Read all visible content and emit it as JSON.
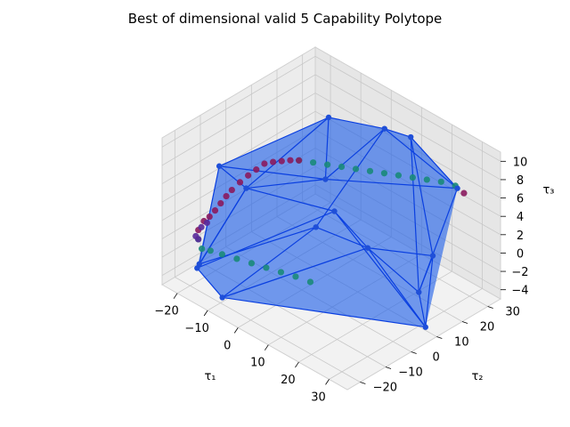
{
  "chart_data": {
    "type": "scatter",
    "projection": "3d",
    "title": "Best of dimensional valid 5 Capability Polytope",
    "xlabel": "τ₁",
    "ylabel": "τ₂",
    "zlabel": "τ₃",
    "x_ticks": [
      "−20",
      "−10",
      "0",
      "10",
      "20",
      "30"
    ],
    "y_ticks": [
      "−20",
      "−10",
      "0",
      "10",
      "20",
      "30"
    ],
    "z_ticks": [
      "−4",
      "−2",
      "0",
      "2",
      "4",
      "6",
      "8",
      "10"
    ],
    "xlim": [
      -25,
      36
    ],
    "ylim": [
      -25,
      35
    ],
    "zlim": [
      -5,
      11
    ],
    "grid": true,
    "polytope": {
      "face_color": "#1f5fe8",
      "edge_color": "#0a3fe0",
      "vertex_color": "#1f4fd8",
      "vertices": [
        [
          -22,
          -14,
          -4
        ],
        [
          -16,
          -22,
          -2
        ],
        [
          -6,
          -24,
          -3
        ],
        [
          -20,
          2,
          2
        ],
        [
          -23,
          -5,
          5
        ],
        [
          34,
          8,
          -4
        ],
        [
          28,
          18,
          1
        ],
        [
          36,
          3,
          1
        ],
        [
          -8,
          20,
          9
        ],
        [
          2,
          30,
          8
        ],
        [
          14,
          26,
          10
        ],
        [
          26,
          30,
          6
        ],
        [
          20,
          2,
          3
        ],
        [
          8,
          -4,
          4
        ],
        [
          4,
          8,
          3
        ],
        [
          -4,
          14,
          4
        ]
      ],
      "edges": [
        [
          0,
          1
        ],
        [
          1,
          2
        ],
        [
          0,
          3
        ],
        [
          0,
          4
        ],
        [
          3,
          4
        ],
        [
          1,
          3
        ],
        [
          2,
          5
        ],
        [
          5,
          6
        ],
        [
          5,
          7
        ],
        [
          6,
          7
        ],
        [
          4,
          8
        ],
        [
          3,
          8
        ],
        [
          8,
          9
        ],
        [
          9,
          10
        ],
        [
          10,
          11
        ],
        [
          11,
          7
        ],
        [
          10,
          7
        ],
        [
          10,
          6
        ],
        [
          9,
          13
        ],
        [
          12,
          5
        ],
        [
          12,
          6
        ],
        [
          12,
          7
        ],
        [
          13,
          0
        ],
        [
          13,
          2
        ],
        [
          14,
          1
        ],
        [
          14,
          5
        ],
        [
          15,
          3
        ],
        [
          15,
          9
        ],
        [
          15,
          11
        ],
        [
          14,
          12
        ],
        [
          13,
          12
        ],
        [
          8,
          15
        ],
        [
          2,
          12
        ],
        [
          4,
          15
        ],
        [
          9,
          11
        ],
        [
          3,
          14
        ]
      ]
    },
    "series": [
      {
        "color": "#1a8a7a",
        "points": [
          [
            -24,
            -12,
            -2
          ],
          [
            -22,
            -13,
            -2.5
          ],
          [
            -20,
            -12,
            -2.5
          ],
          [
            -17,
            -11,
            -2.5
          ],
          [
            -13,
            -10,
            -2.4
          ],
          [
            -9,
            -9,
            -2.3
          ],
          [
            -5,
            -8,
            -2.2
          ],
          [
            -1,
            -7,
            -2.1
          ],
          [
            3,
            -6,
            -2
          ],
          [
            7,
            -5,
            -2
          ],
          [
            -6,
            6,
            7
          ],
          [
            -3,
            8,
            7
          ],
          [
            0,
            10,
            7
          ],
          [
            3,
            12,
            7
          ],
          [
            6,
            14,
            7
          ],
          [
            9,
            16,
            7
          ],
          [
            12,
            18,
            7
          ],
          [
            15,
            20,
            7
          ],
          [
            18,
            22,
            7
          ],
          [
            21,
            24,
            7
          ],
          [
            24,
            26,
            7
          ],
          [
            27,
            28,
            6.8
          ]
        ]
      },
      {
        "color": "#8a1a5e",
        "points": [
          [
            -24,
            -12,
            -1
          ],
          [
            -23,
            -11,
            0
          ],
          [
            -22,
            -10,
            0.5
          ],
          [
            -21,
            -9,
            1.2
          ],
          [
            -20,
            -8,
            2
          ],
          [
            -19,
            -7,
            2.8
          ],
          [
            -18,
            -6,
            3.5
          ],
          [
            -17,
            -4,
            4.2
          ],
          [
            -16,
            -2,
            4.8
          ],
          [
            -15,
            0,
            5.3
          ],
          [
            -14,
            2,
            5.8
          ],
          [
            -12,
            3,
            6.2
          ],
          [
            -10,
            4,
            6.5
          ],
          [
            -8,
            5,
            6.8
          ],
          [
            -6,
            6,
            7
          ],
          [
            29,
            29,
            6.2
          ]
        ]
      },
      {
        "color": "#5a2a9a",
        "points": [
          [
            -24,
            -13,
            -1.5
          ],
          [
            -23,
            -12,
            -0.5
          ],
          [
            -22,
            -11,
            0
          ],
          [
            -24,
            -12,
            -2
          ]
        ]
      }
    ]
  }
}
